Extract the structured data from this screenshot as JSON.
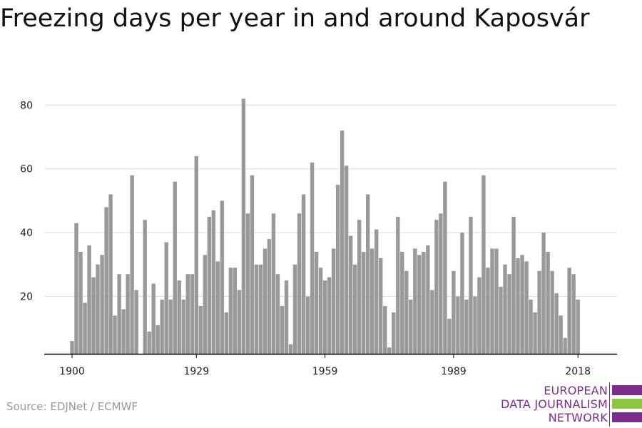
{
  "title": "Freezing days per year in and around Kaposvár",
  "source": "Source: EDJNet / ECMWF",
  "logo": {
    "lines": [
      "EUROPEAN",
      "DATA JOURNALISM",
      "NETWORK"
    ],
    "text_color": "#7b2d8e",
    "bar_colors": [
      "#7b2d8e",
      "#8dc63f",
      "#7b2d8e"
    ]
  },
  "colors": {
    "bar": "#999999",
    "grid": "#dddddd",
    "axis": "#000000"
  },
  "chart_data": {
    "type": "bar",
    "title": "Freezing days per year in and around Kaposvár",
    "xlabel": "",
    "ylabel": "",
    "x": [
      1900,
      1901,
      1902,
      1903,
      1904,
      1905,
      1906,
      1907,
      1908,
      1909,
      1910,
      1911,
      1912,
      1913,
      1914,
      1915,
      1916,
      1917,
      1918,
      1919,
      1920,
      1921,
      1922,
      1923,
      1924,
      1925,
      1926,
      1927,
      1928,
      1929,
      1930,
      1931,
      1932,
      1933,
      1934,
      1935,
      1936,
      1937,
      1938,
      1939,
      1940,
      1941,
      1942,
      1943,
      1944,
      1945,
      1946,
      1947,
      1948,
      1949,
      1950,
      1951,
      1952,
      1953,
      1954,
      1955,
      1956,
      1957,
      1958,
      1959,
      1960,
      1961,
      1962,
      1963,
      1964,
      1965,
      1966,
      1967,
      1968,
      1969,
      1970,
      1971,
      1972,
      1973,
      1974,
      1975,
      1976,
      1977,
      1978,
      1979,
      1980,
      1981,
      1982,
      1983,
      1984,
      1985,
      1986,
      1987,
      1988,
      1989,
      1990,
      1991,
      1992,
      1993,
      1994,
      1995,
      1996,
      1997,
      1998,
      1999,
      2000,
      2001,
      2002,
      2003,
      2004,
      2005,
      2006,
      2007,
      2008,
      2009,
      2010,
      2011,
      2012,
      2013,
      2014,
      2015,
      2016,
      2017,
      2018
    ],
    "values": [
      6,
      43,
      34,
      18,
      36,
      26,
      30,
      33,
      48,
      52,
      14,
      27,
      16,
      27,
      58,
      22,
      0,
      44,
      9,
      24,
      11,
      19,
      37,
      19,
      56,
      25,
      19,
      27,
      27,
      64,
      17,
      33,
      45,
      47,
      31,
      50,
      15,
      29,
      29,
      22,
      82,
      46,
      58,
      30,
      30,
      35,
      38,
      46,
      27,
      17,
      25,
      5,
      30,
      46,
      52,
      20,
      62,
      34,
      29,
      25,
      26,
      35,
      55,
      72,
      61,
      39,
      30,
      44,
      34,
      52,
      35,
      41,
      32,
      17,
      4,
      15,
      45,
      34,
      28,
      19,
      35,
      33,
      34,
      36,
      22,
      44,
      46,
      56,
      13,
      28,
      20,
      40,
      19,
      45,
      20,
      26,
      58,
      29,
      35,
      35,
      23,
      30,
      27,
      45,
      32,
      33,
      31,
      19,
      15,
      28,
      40,
      34,
      28,
      21,
      14,
      7,
      29,
      27,
      19
    ],
    "xticks": [
      1900,
      1929,
      1959,
      1989,
      2018
    ],
    "yticks": [
      20,
      40,
      60,
      80
    ],
    "ylim": [
      2,
      84
    ],
    "xlim": [
      1899.5,
      2018.5
    ],
    "grid": true,
    "legend": "none"
  }
}
